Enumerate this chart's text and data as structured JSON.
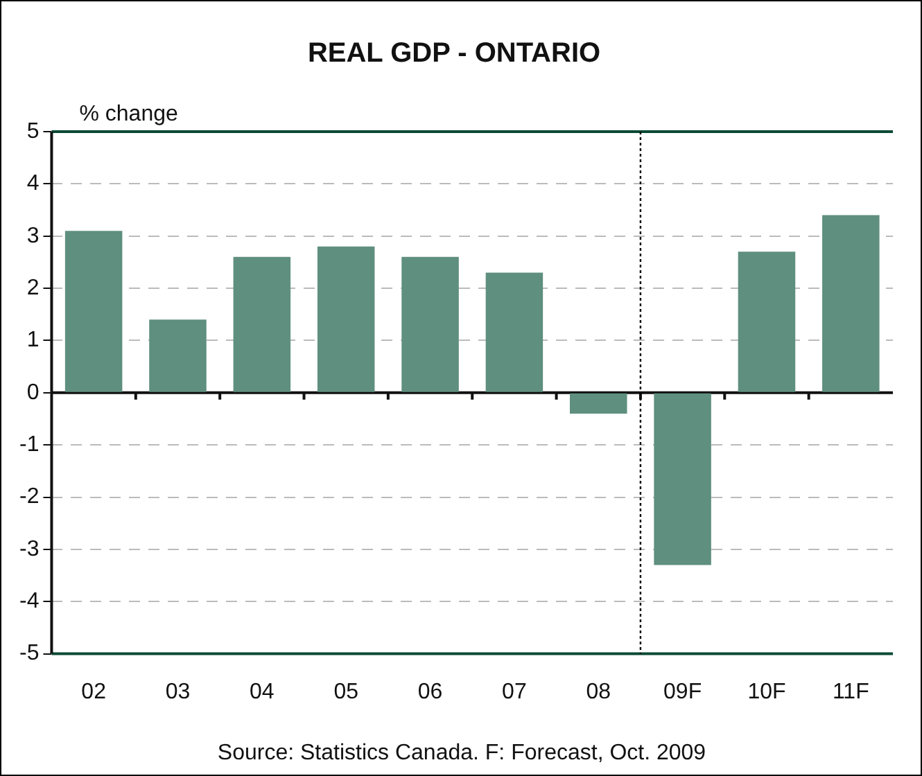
{
  "chart_data": {
    "type": "bar",
    "title": "REAL GDP - ONTARIO",
    "ylabel": "% change",
    "categories": [
      "02",
      "03",
      "04",
      "05",
      "06",
      "07",
      "08",
      "09F",
      "10F",
      "11F"
    ],
    "values": [
      3.1,
      1.4,
      2.6,
      2.8,
      2.6,
      2.3,
      -0.4,
      -3.3,
      2.7,
      3.4
    ],
    "color": "#5f8f7e",
    "ylim": [
      -5,
      5
    ],
    "yticks": [
      -5,
      -4,
      -3,
      -2,
      -1,
      0,
      1,
      2,
      3,
      4,
      5
    ],
    "grid": "y",
    "legend": false,
    "ref_lines": [
      {
        "axis": "x",
        "value": "09F",
        "line_style": "dotted",
        "color": "#000000"
      }
    ],
    "annotations": [
      "Source: Statistics Canada. F: Forecast, Oct. 2009"
    ]
  }
}
